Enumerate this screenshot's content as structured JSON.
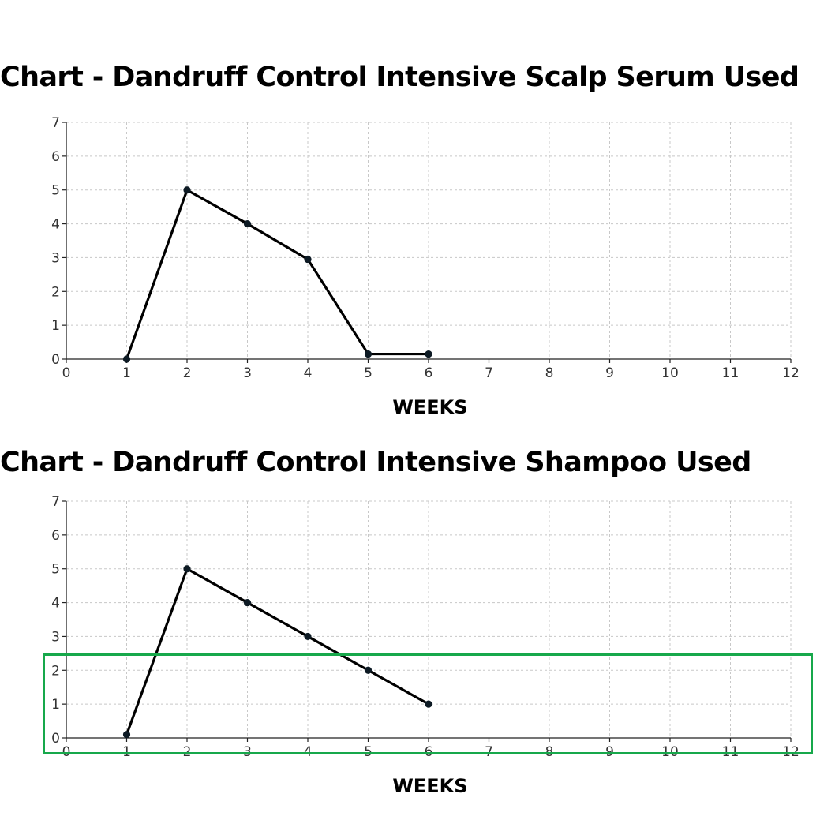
{
  "chart_data": [
    {
      "type": "line",
      "title": "Chart - Dandruff Control Intensive Scalp Serum Used",
      "xlabel": "WEEKS",
      "ylabel": "",
      "xlim": [
        0,
        12
      ],
      "ylim": [
        0,
        7
      ],
      "xticks": [
        "0",
        "1",
        "2",
        "3",
        "4",
        "5",
        "6",
        "7",
        "8",
        "9",
        "10",
        "11",
        "12"
      ],
      "yticks": [
        "0",
        "1",
        "2",
        "3",
        "4",
        "5",
        "6",
        "7"
      ],
      "grid": true,
      "series": [
        {
          "x": [
            1,
            2,
            3,
            4,
            5,
            6
          ],
          "y": [
            0,
            5,
            4,
            2.95,
            0.15,
            0.15
          ]
        }
      ]
    },
    {
      "type": "line",
      "title": "Chart - Dandruff Control Intensive Shampoo Used",
      "xlabel": "WEEKS",
      "ylabel": "",
      "xlim": [
        0,
        12
      ],
      "ylim": [
        0,
        7
      ],
      "xticks": [
        "0",
        "1",
        "2",
        "3",
        "4",
        "5",
        "6",
        "7",
        "8",
        "9",
        "10",
        "11",
        "12"
      ],
      "yticks": [
        "0",
        "1",
        "2",
        "3",
        "4",
        "5",
        "6",
        "7"
      ],
      "grid": true,
      "series": [
        {
          "x": [
            1,
            2,
            3,
            4,
            5,
            6
          ],
          "y": [
            0.1,
            5,
            4,
            3,
            2,
            1
          ]
        }
      ]
    }
  ],
  "highlight": {
    "color": "#17a84b"
  },
  "line_color": "#000000"
}
